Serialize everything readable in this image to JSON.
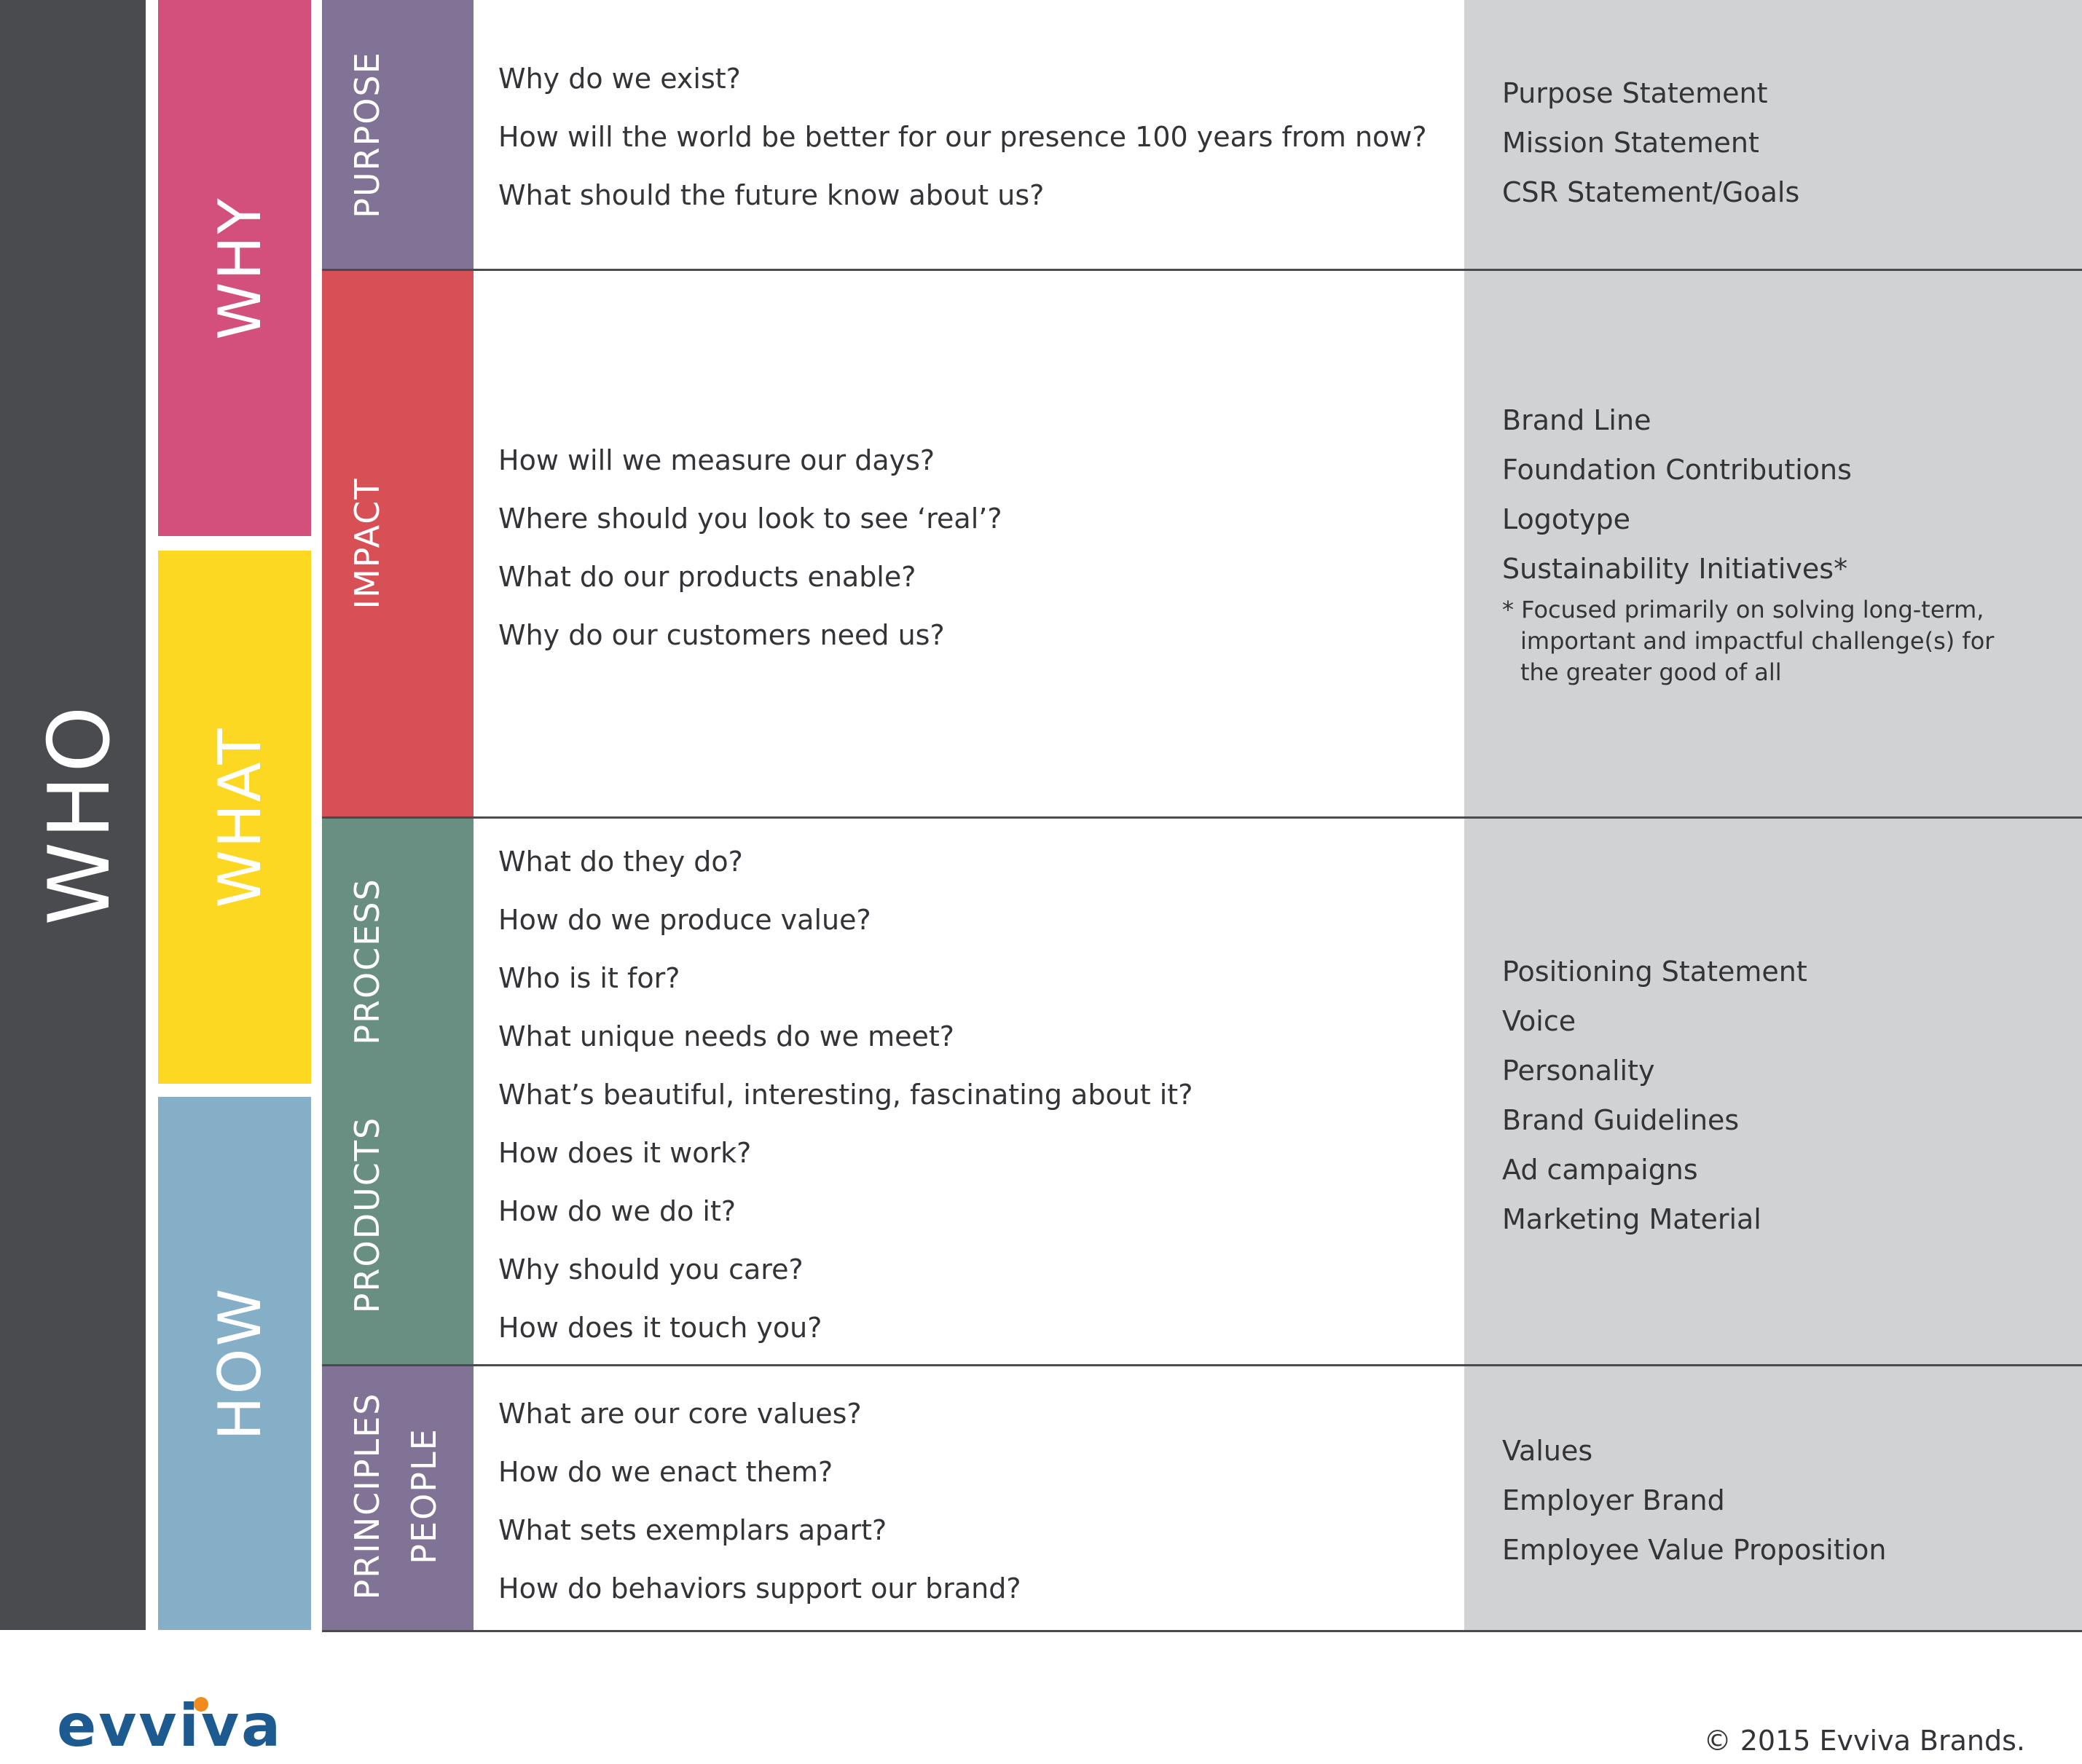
{
  "colors": {
    "who": "#4a4b4f",
    "why": "#d4507c",
    "what": "#fdd823",
    "how": "#84afc6",
    "purpose": "#817396",
    "impact": "#d65055",
    "process": "#698f82",
    "principles": "#817396",
    "outputs_bg": "#d1d2d4"
  },
  "columns": {
    "who": "WHO",
    "why": "WHY",
    "what": "WHAT",
    "how": "HOW"
  },
  "sections": [
    {
      "labels": [
        "PURPOSE"
      ],
      "questions": [
        "Why do we exist?",
        "How will the world be better for our presence 100 years from now?",
        "What should the future know about us?"
      ],
      "outputs": [
        "Purpose Statement",
        "Mission Statement",
        "CSR Statement/Goals"
      ]
    },
    {
      "labels": [
        "IMPACT"
      ],
      "questions": [
        "How will we measure our days?",
        "Where should you look to see ‘real’?",
        "What do our products enable?",
        "Why do our customers need us?"
      ],
      "outputs": [
        "Brand Line",
        "Foundation Contributions",
        "Logotype",
        "Sustainability Initiatives*"
      ],
      "note": [
        "* Focused primarily on solving long-term,",
        "important and impactful challenge(s) for",
        "the greater good of all"
      ]
    },
    {
      "labels": [
        "PROCESS",
        "PRODUCTS"
      ],
      "questions": [
        "What do they do?",
        "How do we produce value?",
        "Who is it for?",
        "What unique needs do we meet?",
        "What’s beautiful, interesting, fascinating about it?",
        "How does it work?",
        "How do we do it?",
        "Why should you care?",
        "How does it touch you?"
      ],
      "outputs": [
        "Positioning Statement",
        "Voice",
        "Personality",
        "Brand Guidelines",
        "Ad campaigns",
        "Marketing Material"
      ]
    },
    {
      "labels": [
        "PRINCIPLES",
        "PEOPLE"
      ],
      "questions": [
        "What are our core values?",
        "How do we enact them?",
        "What sets exemplars apart?",
        "How do behaviors support our brand?"
      ],
      "outputs": [
        "Values",
        "Employer Brand",
        "Employee Value Proposition"
      ]
    }
  ],
  "footer": {
    "logo": "evviva",
    "copyright": "© 2015 Evviva Brands."
  }
}
